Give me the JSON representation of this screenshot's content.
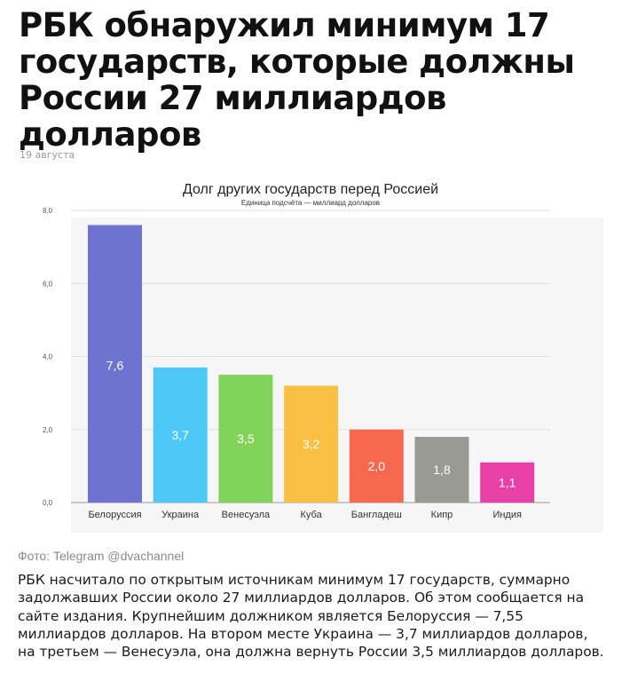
{
  "article": {
    "headline": "РБК обнаружил минимум 17 государств, которые должны России 27 миллиардов долларов",
    "date": "19 августа",
    "caption": "Фото: Telegram @dvachannel",
    "body": "РБК насчитало по открытым источникам минимум 17 государств, суммарно задолжавших России около 27 миллиардов долларов. Об этом сообщается на сайте издания. Крупнейшим должником является Белоруссия — 7,55 миллиардов долларов. На втором месте Украина — 3,7 миллиардов долларов, на третьем — Венесуэла, она должна вернуть России 3,5 миллиардов долларов."
  },
  "chart_data": {
    "type": "bar",
    "title": "Долг других государств перед Россией",
    "subtitle": "Единица подсчёта — миллиард долларов",
    "xlabel": "",
    "ylabel": "",
    "ylim": [
      0,
      8
    ],
    "yticks": [
      "0,0",
      "2,0",
      "4,0",
      "6,0",
      "8,0"
    ],
    "grid": true,
    "legend": "none",
    "categories": [
      "Белоруссия",
      "Украина",
      "Венесуэла",
      "Куба",
      "Бангладеш",
      "Кипр",
      "Индия"
    ],
    "values": [
      7.6,
      3.7,
      3.5,
      3.2,
      2.0,
      1.8,
      1.1
    ],
    "labels": [
      "7,6",
      "3,7",
      "3,5",
      "3,2",
      "2,0",
      "1,8",
      "1,1"
    ],
    "colors": [
      "#6e73cf",
      "#4ec8f6",
      "#82d35a",
      "#f9c043",
      "#f7694f",
      "#9a9a94",
      "#e840a6"
    ]
  }
}
